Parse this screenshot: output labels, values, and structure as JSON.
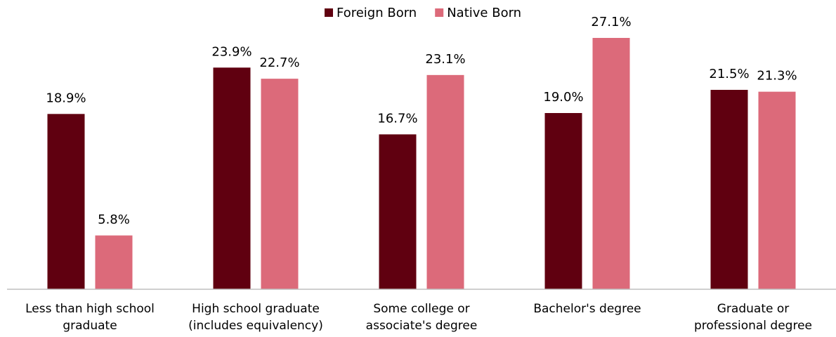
{
  "chart_data": {
    "type": "bar",
    "categories": [
      "Less than high school\ngraduate",
      "High school graduate\n(includes equivalency)",
      "Some college or\nassociate's degree",
      "Bachelor's degree",
      "Graduate or\nprofessional degree"
    ],
    "series": [
      {
        "name": "Foreign Born",
        "color": "#600010",
        "values": [
          18.9,
          23.9,
          16.7,
          19.0,
          21.5
        ],
        "value_labels": [
          "18.9%",
          "23.9%",
          "16.7%",
          "19.0%",
          "21.5%"
        ]
      },
      {
        "name": "Native Born",
        "color": "#dc6a7a",
        "values": [
          5.8,
          22.7,
          23.1,
          27.1,
          21.3
        ],
        "value_labels": [
          "5.8%",
          "22.7%",
          "23.1%",
          "27.1%",
          "21.3%"
        ]
      }
    ],
    "legend": "top"
  }
}
